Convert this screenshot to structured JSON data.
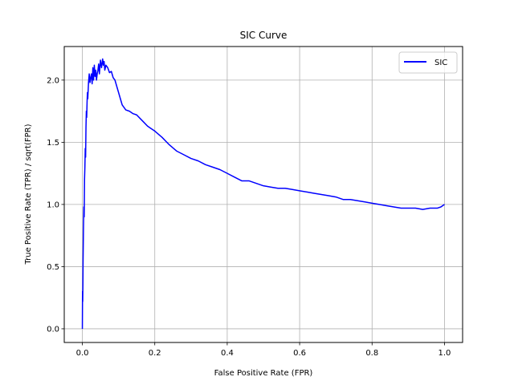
{
  "chart_data": {
    "type": "line",
    "title": "SIC Curve",
    "xlabel": "False Positive Rate (FPR)",
    "ylabel": "True Positive Rate (TPR) / sqrt(FPR)",
    "xlim": [
      -0.05,
      1.05
    ],
    "ylim": [
      -0.11,
      2.27
    ],
    "xticks": [
      0.0,
      0.2,
      0.4,
      0.6,
      0.8,
      1.0
    ],
    "xtick_labels": [
      "0.0",
      "0.2",
      "0.4",
      "0.6",
      "0.8",
      "1.0"
    ],
    "yticks": [
      0.0,
      0.5,
      1.0,
      1.5,
      2.0
    ],
    "ytick_labels": [
      "0.0",
      "0.5",
      "1.0",
      "1.5",
      "2.0"
    ],
    "grid": true,
    "legend_position": "top-right",
    "series": [
      {
        "name": "SIC",
        "color": "#0000ff",
        "x": [
          0.0,
          0.0005,
          0.001,
          0.0015,
          0.002,
          0.003,
          0.004,
          0.005,
          0.006,
          0.007,
          0.008,
          0.009,
          0.01,
          0.011,
          0.012,
          0.013,
          0.014,
          0.015,
          0.017,
          0.019,
          0.021,
          0.023,
          0.025,
          0.027,
          0.029,
          0.031,
          0.033,
          0.035,
          0.037,
          0.039,
          0.041,
          0.043,
          0.045,
          0.047,
          0.05,
          0.053,
          0.056,
          0.058,
          0.06,
          0.062,
          0.065,
          0.07,
          0.075,
          0.08,
          0.085,
          0.09,
          0.095,
          0.1,
          0.105,
          0.11,
          0.115,
          0.12,
          0.13,
          0.14,
          0.15,
          0.16,
          0.17,
          0.18,
          0.19,
          0.2,
          0.22,
          0.24,
          0.26,
          0.28,
          0.3,
          0.32,
          0.34,
          0.36,
          0.38,
          0.4,
          0.42,
          0.44,
          0.46,
          0.48,
          0.5,
          0.52,
          0.54,
          0.56,
          0.58,
          0.6,
          0.62,
          0.64,
          0.66,
          0.68,
          0.7,
          0.72,
          0.74,
          0.76,
          0.78,
          0.8,
          0.82,
          0.84,
          0.86,
          0.88,
          0.9,
          0.92,
          0.94,
          0.96,
          0.98,
          0.99,
          1.0
        ],
        "y": [
          0.0,
          0.3,
          0.22,
          0.35,
          0.55,
          0.8,
          0.98,
          0.9,
          1.2,
          1.3,
          1.45,
          1.38,
          1.62,
          1.75,
          1.7,
          1.82,
          1.9,
          1.85,
          1.98,
          2.05,
          1.98,
          2.02,
          2.05,
          1.97,
          2.1,
          2.0,
          2.12,
          2.03,
          2.08,
          2.0,
          2.05,
          2.08,
          2.13,
          2.05,
          2.16,
          2.1,
          2.17,
          2.12,
          2.15,
          2.08,
          2.12,
          2.1,
          2.06,
          2.07,
          2.02,
          2.0,
          1.95,
          1.9,
          1.85,
          1.8,
          1.78,
          1.76,
          1.75,
          1.73,
          1.72,
          1.69,
          1.66,
          1.63,
          1.61,
          1.59,
          1.54,
          1.48,
          1.43,
          1.4,
          1.37,
          1.35,
          1.32,
          1.3,
          1.28,
          1.25,
          1.22,
          1.19,
          1.19,
          1.17,
          1.15,
          1.14,
          1.13,
          1.13,
          1.12,
          1.11,
          1.1,
          1.09,
          1.08,
          1.07,
          1.06,
          1.04,
          1.04,
          1.03,
          1.02,
          1.01,
          1.0,
          0.99,
          0.98,
          0.97,
          0.97,
          0.97,
          0.96,
          0.97,
          0.97,
          0.98,
          1.0
        ]
      }
    ]
  }
}
